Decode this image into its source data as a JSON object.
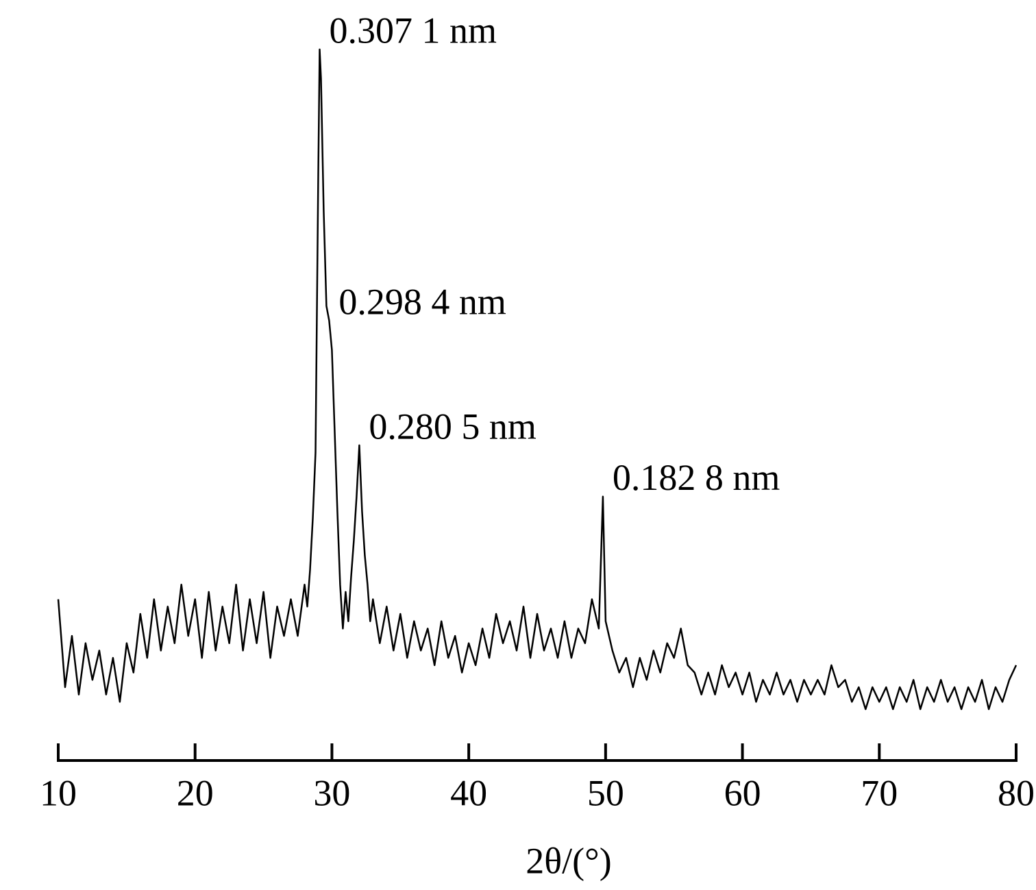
{
  "chart_data": {
    "type": "line",
    "x_label": "2θ/(°)",
    "x": [
      10,
      10.5,
      11,
      11.5,
      12,
      12.5,
      13,
      13.5,
      14,
      14.5,
      15,
      15.5,
      16,
      16.5,
      17,
      17.5,
      18,
      18.5,
      19,
      19.5,
      20,
      20.5,
      21,
      21.5,
      22,
      22.5,
      23,
      23.5,
      24,
      24.5,
      25,
      25.5,
      26,
      26.5,
      27,
      27.5,
      28,
      28.2,
      28.4,
      28.6,
      28.8,
      29.0,
      29.1,
      29.2,
      29.4,
      29.6,
      29.8,
      30.0,
      30.2,
      30.4,
      30.6,
      30.8,
      31.0,
      31.2,
      31.4,
      31.6,
      31.8,
      32.0,
      32.2,
      32.4,
      32.6,
      32.8,
      33.0,
      33.5,
      34,
      34.5,
      35,
      35.5,
      36,
      36.5,
      37,
      37.5,
      38,
      38.5,
      39,
      39.5,
      40,
      40.5,
      41,
      41.5,
      42,
      42.5,
      43,
      43.5,
      44,
      44.5,
      45,
      45.5,
      46,
      46.5,
      47,
      47.5,
      48,
      48.5,
      49,
      49.5,
      49.8,
      50,
      50.5,
      51,
      51.5,
      52,
      52.5,
      53,
      53.5,
      54,
      54.5,
      55,
      55.5,
      56,
      56.5,
      57,
      57.5,
      58,
      58.5,
      59,
      59.5,
      60,
      60.5,
      61,
      61.5,
      62,
      62.5,
      63,
      63.5,
      64,
      64.5,
      65,
      65.5,
      66,
      66.5,
      67,
      67.5,
      68,
      68.5,
      69,
      69.5,
      70,
      70.5,
      71,
      71.5,
      72,
      72.5,
      73,
      73.5,
      74,
      74.5,
      75,
      75.5,
      76,
      76.5,
      77,
      77.5,
      78,
      78.5,
      79,
      79.5,
      80
    ],
    "series": [
      {
        "color": "#000000",
        "values": [
          22,
          10,
          17,
          9,
          16,
          11,
          15,
          9,
          14,
          8,
          16,
          12,
          20,
          14,
          22,
          15,
          21,
          16,
          24,
          17,
          22,
          14,
          23,
          15,
          21,
          16,
          24,
          15,
          22,
          16,
          23,
          14,
          21,
          17,
          22,
          17,
          24,
          21,
          26,
          33,
          42,
          80,
          97,
          93,
          75,
          62,
          60,
          56,
          45,
          34,
          24,
          18,
          23,
          19,
          25,
          30,
          36,
          43,
          34,
          28,
          24,
          19,
          22,
          16,
          21,
          15,
          20,
          14,
          19,
          15,
          18,
          13,
          19,
          14,
          17,
          12,
          16,
          13,
          18,
          14,
          20,
          16,
          19,
          15,
          21,
          14,
          20,
          15,
          18,
          14,
          19,
          14,
          18,
          16,
          22,
          18,
          36,
          19,
          15,
          12,
          14,
          10,
          14,
          11,
          15,
          12,
          16,
          14,
          18,
          13,
          12,
          9,
          12,
          9,
          13,
          10,
          12,
          9,
          12,
          8,
          11,
          9,
          12,
          9,
          11,
          8,
          11,
          9,
          11,
          9,
          13,
          10,
          11,
          8,
          10,
          7,
          10,
          8,
          10,
          7,
          10,
          8,
          11,
          7,
          10,
          8,
          11,
          8,
          10,
          7,
          10,
          8,
          11,
          7,
          10,
          8,
          11,
          13
        ]
      }
    ],
    "xlim": [
      10,
      80
    ],
    "xticks": [
      10,
      20,
      30,
      40,
      50,
      60,
      70,
      80
    ],
    "ylim": [
      0,
      100
    ],
    "annotations": [
      {
        "text": "0.307 1 nm",
        "x": 29.1,
        "y": 97
      },
      {
        "text": "0.298 4 nm",
        "x": 29.8,
        "y": 60
      },
      {
        "text": "0.280 5 nm",
        "x": 32.0,
        "y": 43
      },
      {
        "text": "0.182 8 nm",
        "x": 49.8,
        "y": 36
      }
    ]
  }
}
